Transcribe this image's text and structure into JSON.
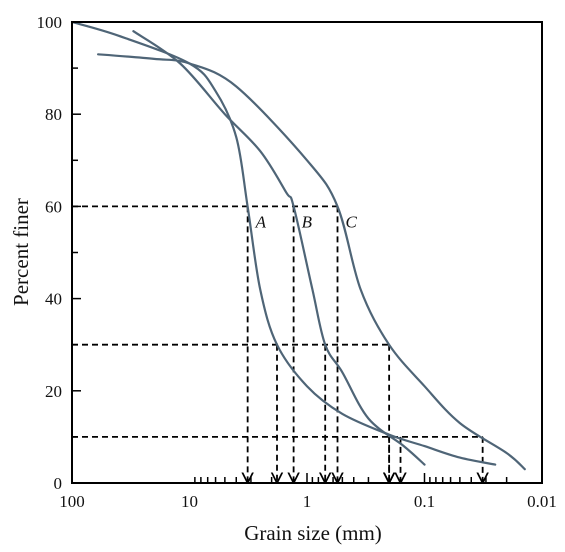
{
  "chart_data": {
    "type": "line",
    "xlabel": "Grain size (mm)",
    "ylabel": "Percent finer",
    "x_scale": "log",
    "x_reversed": true,
    "xlim": [
      100,
      0.01
    ],
    "ylim": [
      0,
      100
    ],
    "x_tick_labels": [
      "100",
      "10",
      "1",
      "0.1",
      "0.01"
    ],
    "x_ticks": [
      100,
      10,
      1,
      0.1,
      0.01
    ],
    "y_tick_labels": [
      "0",
      "20",
      "40",
      "60",
      "80",
      "100"
    ],
    "y_ticks": [
      0,
      20,
      40,
      60,
      80,
      100
    ],
    "grid": false,
    "series": [
      {
        "name": "A",
        "color": "#4f6577",
        "points": [
          [
            100,
            100
          ],
          [
            40,
            97
          ],
          [
            10,
            91
          ],
          [
            6,
            85
          ],
          [
            4,
            75
          ],
          [
            3.2,
            60
          ],
          [
            2.5,
            42
          ],
          [
            1.8,
            30
          ],
          [
            1,
            21
          ],
          [
            0.5,
            15
          ],
          [
            0.2,
            10.5
          ],
          [
            0.1,
            8
          ],
          [
            0.05,
            5.5
          ],
          [
            0.025,
            4
          ]
        ]
      },
      {
        "name": "B",
        "color": "#4f6577",
        "points": [
          [
            30,
            98
          ],
          [
            12,
            91
          ],
          [
            5,
            80
          ],
          [
            2.5,
            72
          ],
          [
            1.5,
            63
          ],
          [
            1.3,
            60
          ],
          [
            0.9,
            42
          ],
          [
            0.7,
            30
          ],
          [
            0.5,
            24
          ],
          [
            0.3,
            14
          ],
          [
            0.15,
            8
          ],
          [
            0.1,
            4
          ]
        ]
      },
      {
        "name": "C",
        "color": "#4f6577",
        "points": [
          [
            60,
            93
          ],
          [
            20,
            92
          ],
          [
            10,
            91
          ],
          [
            4,
            86
          ],
          [
            1,
            70
          ],
          [
            0.55,
            60
          ],
          [
            0.35,
            42
          ],
          [
            0.2,
            30
          ],
          [
            0.1,
            21
          ],
          [
            0.05,
            13
          ],
          [
            0.02,
            6.5
          ],
          [
            0.014,
            3
          ]
        ]
      }
    ],
    "reference_lines": {
      "percent_levels": [
        60,
        30,
        10
      ],
      "grain_sizes": {
        "A": {
          "60": 3.2,
          "30": 1.8,
          "10": 0.2
        },
        "B": {
          "60": 1.3,
          "30": 0.7,
          "10": 0.16
        },
        "C": {
          "60": 0.55,
          "30": 0.2,
          "10": 0.032
        }
      }
    },
    "curve_labels": [
      "A",
      "B",
      "C"
    ]
  }
}
